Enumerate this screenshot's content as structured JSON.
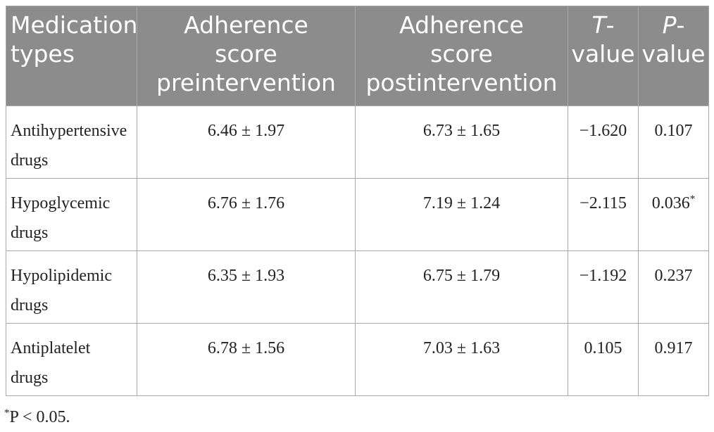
{
  "table": {
    "headers": [
      {
        "line1": "Medication",
        "line2": "types",
        "line3": ""
      },
      {
        "line1": "Adherence",
        "line2": "score",
        "line3": "preintervention"
      },
      {
        "line1": "Adherence",
        "line2": "score",
        "line3": "postintervention"
      },
      {
        "italic": "T",
        "rest1": "-",
        "line2": "value"
      },
      {
        "italic": "P",
        "rest1": "-",
        "line2": "value"
      }
    ],
    "rows": [
      {
        "type_line1": "Antihypertensive",
        "type_line2": "drugs",
        "pre": "6.46 ± 1.97",
        "post": "6.73 ± 1.65",
        "t": "−1.620",
        "p": "0.107",
        "p_mark": ""
      },
      {
        "type_line1": "Hypoglycemic",
        "type_line2": "drugs",
        "pre": "6.76 ± 1.76",
        "post": "7.19 ± 1.24",
        "t": "−2.115",
        "p": "0.036",
        "p_mark": "*"
      },
      {
        "type_line1": "Hypolipidemic",
        "type_line2": "drugs",
        "pre": "6.35 ± 1.93",
        "post": "6.75 ± 1.79",
        "t": "−1.192",
        "p": "0.237",
        "p_mark": ""
      },
      {
        "type_line1": "Antiplatelet",
        "type_line2": "drugs",
        "pre": "6.78 ± 1.56",
        "post": "7.03 ± 1.63",
        "t": "0.105",
        "p": "0.917",
        "p_mark": ""
      }
    ]
  },
  "footnote": {
    "mark": "*",
    "text": "P < 0.05."
  }
}
